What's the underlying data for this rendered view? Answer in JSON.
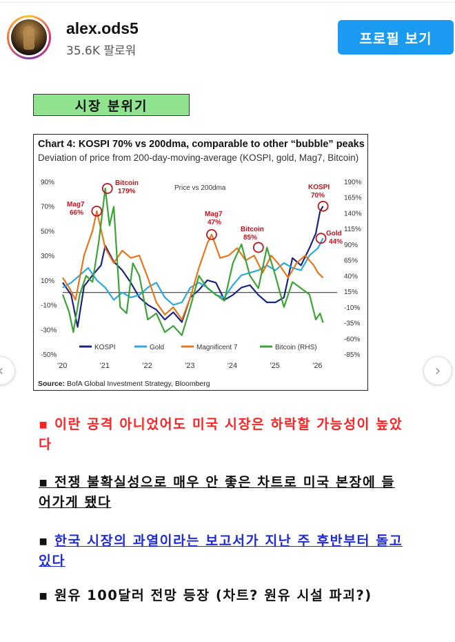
{
  "header": {
    "username": "alex.ods5",
    "followers": "35.6K 팔로워",
    "profile_button": "프로필 보기"
  },
  "tag": "시장 분위기",
  "chart_card": {
    "title": "Chart 4: KOSPI 70% vs 200dma, comparable to other “bubble” peaks",
    "subtitle": "Deviation of price from 200-day-moving-average (KOSPI, gold, Mag7, Bitcoin)",
    "source_label": "Source:",
    "source_text": " BofA Global Investment Strategy, Bloomberg"
  },
  "chart_data": {
    "type": "line",
    "inner_label": "Price vs 200dma",
    "x_ticks": [
      "'20",
      "'21",
      "'22",
      "'23",
      "'24",
      "'25",
      "'26"
    ],
    "y_left_ticks": [
      "90%",
      "70%",
      "50%",
      "30%",
      "10%",
      "-10%",
      "-30%",
      "-50%"
    ],
    "y_left_range": [
      -50,
      90
    ],
    "y_right_ticks": [
      "190%",
      "165%",
      "140%",
      "115%",
      "90%",
      "65%",
      "40%",
      "15%",
      "-10%",
      "-35%",
      "-60%",
      "-85%"
    ],
    "y_right_range": [
      -85,
      190
    ],
    "legend": [
      "KOSPI",
      "Gold",
      "Magnificent 7",
      "Bitcoin (RHS)"
    ],
    "annotations": [
      {
        "label": "Mag7",
        "value": "66%",
        "year": 2020.8
      },
      {
        "label": "Bitcoin",
        "value": "179%",
        "year": 2021.1
      },
      {
        "label": "Mag7",
        "value": "47%",
        "year": 2023.5
      },
      {
        "label": "Bitcoin",
        "value": "85%",
        "year": 2024.6
      },
      {
        "label": "KOSPI",
        "value": "70%",
        "year": 2026.1
      },
      {
        "label": "Gold",
        "value": "44%",
        "year": 2026.1
      }
    ],
    "series": [
      {
        "name": "KOSPI",
        "color": "#1a237e",
        "axis": "left",
        "x": [
          2020.0,
          2020.2,
          2020.35,
          2020.5,
          2020.7,
          2020.9,
          2021.0,
          2021.2,
          2021.4,
          2021.6,
          2021.8,
          2022.0,
          2022.2,
          2022.4,
          2022.6,
          2022.8,
          2023.0,
          2023.2,
          2023.4,
          2023.6,
          2023.8,
          2024.0,
          2024.2,
          2024.4,
          2024.6,
          2024.8,
          2025.0,
          2025.2,
          2025.4,
          2025.6,
          2025.8,
          2025.95,
          2026.05,
          2026.12
        ],
        "y": [
          8,
          -2,
          -28,
          5,
          14,
          22,
          38,
          25,
          18,
          8,
          -4,
          -10,
          -14,
          -22,
          -16,
          -24,
          -4,
          2,
          10,
          8,
          -6,
          -2,
          4,
          6,
          -2,
          -8,
          -8,
          -4,
          28,
          22,
          36,
          48,
          66,
          70
        ]
      },
      {
        "name": "Gold",
        "color": "#29a8e0",
        "axis": "left",
        "x": [
          2020.0,
          2020.2,
          2020.4,
          2020.6,
          2020.8,
          2021.0,
          2021.2,
          2021.4,
          2021.6,
          2021.8,
          2022.0,
          2022.2,
          2022.4,
          2022.6,
          2022.8,
          2023.0,
          2023.2,
          2023.4,
          2023.6,
          2023.8,
          2024.0,
          2024.2,
          2024.4,
          2024.6,
          2024.8,
          2025.0,
          2025.2,
          2025.4,
          2025.6,
          2025.8,
          2026.0,
          2026.12
        ],
        "y": [
          4,
          8,
          14,
          20,
          10,
          4,
          -6,
          0,
          -4,
          -2,
          4,
          8,
          -4,
          -10,
          -8,
          4,
          8,
          4,
          -2,
          -4,
          6,
          14,
          16,
          18,
          22,
          18,
          24,
          20,
          18,
          30,
          36,
          44
        ]
      },
      {
        "name": "Magnificent 7",
        "color": "#e8751a",
        "axis": "left",
        "x": [
          2020.0,
          2020.15,
          2020.3,
          2020.5,
          2020.7,
          2020.8,
          2021.0,
          2021.2,
          2021.4,
          2021.6,
          2021.8,
          2022.0,
          2022.2,
          2022.4,
          2022.6,
          2022.8,
          2023.0,
          2023.2,
          2023.4,
          2023.5,
          2023.7,
          2023.9,
          2024.1,
          2024.3,
          2024.5,
          2024.7,
          2024.9,
          2025.1,
          2025.3,
          2025.5,
          2025.7,
          2025.9,
          2026.0,
          2026.12
        ],
        "y": [
          12,
          4,
          -6,
          30,
          50,
          66,
          36,
          24,
          34,
          28,
          30,
          12,
          -8,
          -18,
          -12,
          -22,
          -4,
          20,
          40,
          47,
          28,
          30,
          36,
          26,
          30,
          16,
          30,
          22,
          12,
          24,
          30,
          22,
          16,
          12
        ]
      },
      {
        "name": "Bitcoin (RHS)",
        "color": "#3aa335",
        "axis": "right",
        "x": [
          2020.0,
          2020.15,
          2020.25,
          2020.4,
          2020.55,
          2020.7,
          2020.85,
          2021.0,
          2021.1,
          2021.2,
          2021.35,
          2021.5,
          2021.65,
          2021.8,
          2022.0,
          2022.2,
          2022.4,
          2022.6,
          2022.8,
          2023.0,
          2023.2,
          2023.4,
          2023.6,
          2023.8,
          2024.0,
          2024.2,
          2024.4,
          2024.6,
          2024.8,
          2025.0,
          2025.2,
          2025.4,
          2025.6,
          2025.8,
          2025.95,
          2026.05,
          2026.12
        ],
        "y": [
          10,
          -18,
          -50,
          10,
          40,
          30,
          95,
          179,
          120,
          150,
          -10,
          -20,
          60,
          40,
          -30,
          -20,
          -50,
          -40,
          -55,
          -10,
          40,
          20,
          10,
          0,
          60,
          90,
          40,
          20,
          85,
          40,
          -10,
          30,
          20,
          10,
          -30,
          -20,
          -35
        ]
      }
    ]
  }
}
